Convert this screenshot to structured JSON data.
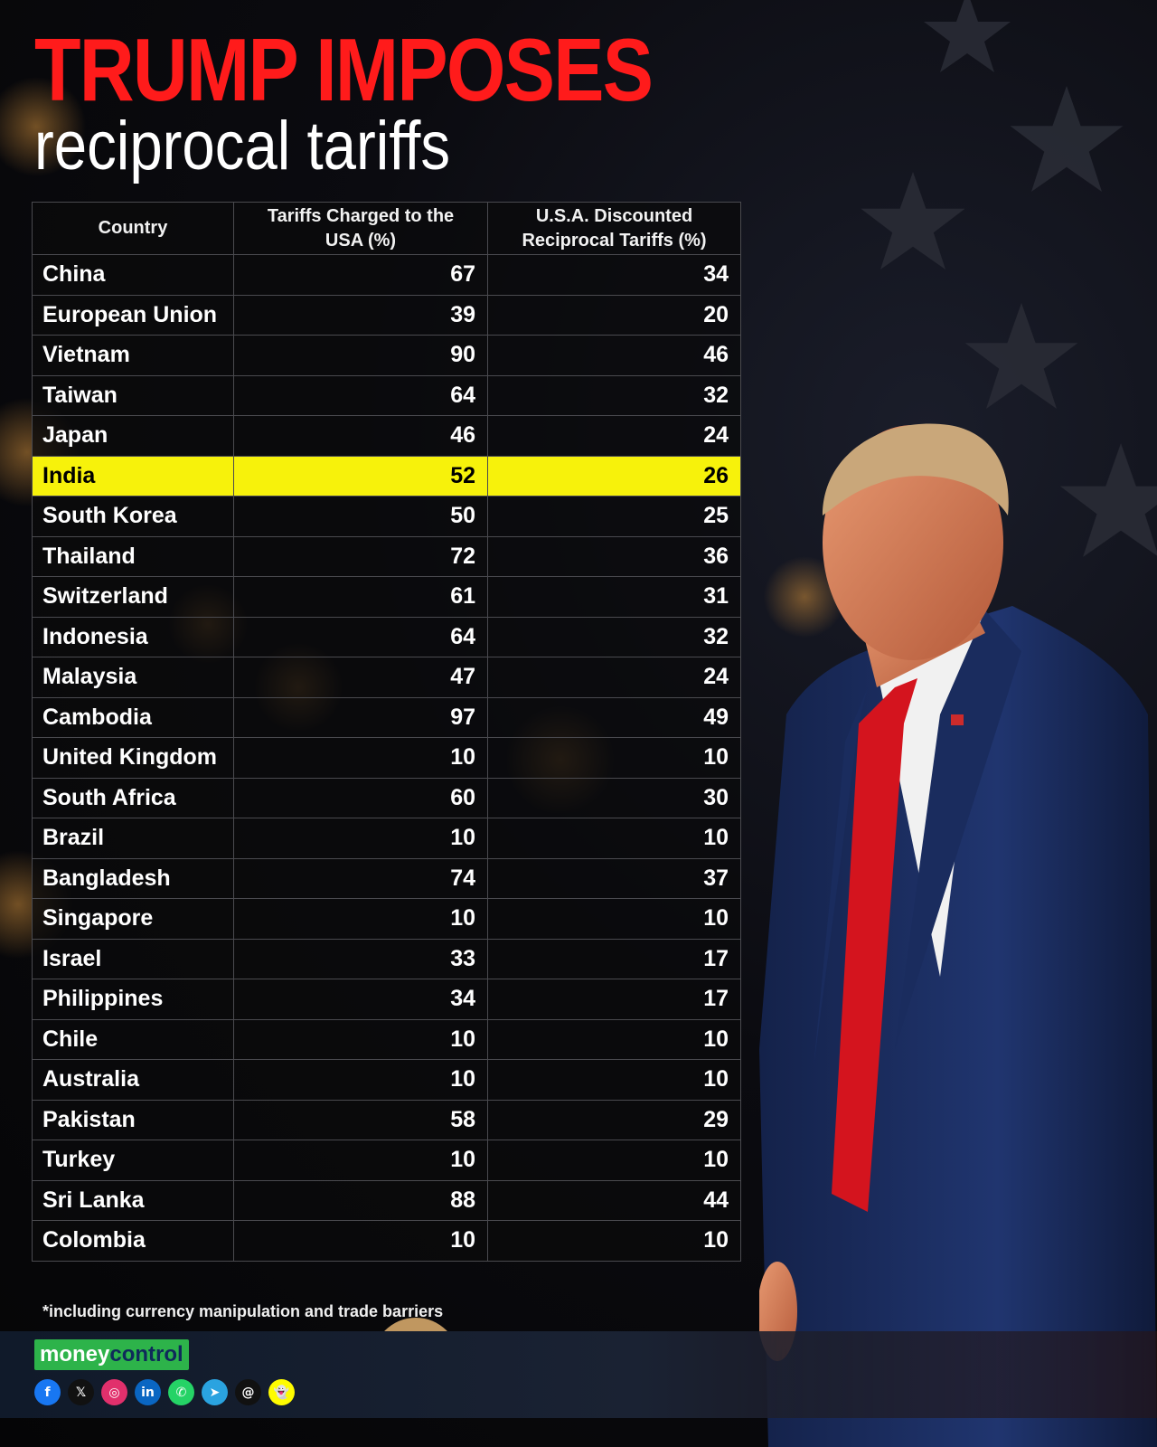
{
  "title": {
    "line1": "TRUMP IMPOSES",
    "line2": "reciprocal tariffs"
  },
  "table": {
    "headers": {
      "country": "Country",
      "charged": "Tariffs Charged to the USA (%)",
      "discounted": "U.S.A. Discounted Reciprocal Tariffs (%)"
    },
    "highlight_color": "#f7f20b",
    "rows": [
      {
        "country": "China",
        "charged": "67",
        "discounted": "34"
      },
      {
        "country": "European Union",
        "charged": "39",
        "discounted": "20"
      },
      {
        "country": "Vietnam",
        "charged": "90",
        "discounted": "46"
      },
      {
        "country": "Taiwan",
        "charged": "64",
        "discounted": "32"
      },
      {
        "country": "Japan",
        "charged": "46",
        "discounted": "24"
      },
      {
        "country": "India",
        "charged": "52",
        "discounted": "26",
        "highlighted": true
      },
      {
        "country": "South Korea",
        "charged": "50",
        "discounted": "25"
      },
      {
        "country": "Thailand",
        "charged": "72",
        "discounted": "36"
      },
      {
        "country": "Switzerland",
        "charged": "61",
        "discounted": "31"
      },
      {
        "country": "Indonesia",
        "charged": "64",
        "discounted": "32"
      },
      {
        "country": "Malaysia",
        "charged": "47",
        "discounted": "24"
      },
      {
        "country": "Cambodia",
        "charged": "97",
        "discounted": "49"
      },
      {
        "country": "United Kingdom",
        "charged": "10",
        "discounted": "10"
      },
      {
        "country": "South Africa",
        "charged": "60",
        "discounted": "30"
      },
      {
        "country": "Brazil",
        "charged": "10",
        "discounted": "10"
      },
      {
        "country": "Bangladesh",
        "charged": "74",
        "discounted": "37"
      },
      {
        "country": "Singapore",
        "charged": "10",
        "discounted": "10"
      },
      {
        "country": "Israel",
        "charged": "33",
        "discounted": "17"
      },
      {
        "country": "Philippines",
        "charged": "34",
        "discounted": "17"
      },
      {
        "country": "Chile",
        "charged": "10",
        "discounted": "10"
      },
      {
        "country": "Australia",
        "charged": "10",
        "discounted": "10"
      },
      {
        "country": "Pakistan",
        "charged": "58",
        "discounted": "29"
      },
      {
        "country": "Turkey",
        "charged": "10",
        "discounted": "10"
      },
      {
        "country": "Sri Lanka",
        "charged": "88",
        "discounted": "44"
      },
      {
        "country": "Colombia",
        "charged": "10",
        "discounted": "10"
      }
    ]
  },
  "footnote": "*including currency manipulation and trade barriers",
  "brand": {
    "part1": "money",
    "part2": "control",
    "color": "#2db34a"
  },
  "socials": [
    {
      "icon": "facebook-icon",
      "glyph": "f",
      "color": "#1877f2"
    },
    {
      "icon": "x-icon",
      "glyph": "𝕏",
      "color": "#111111"
    },
    {
      "icon": "instagram-icon",
      "glyph": "◎",
      "color": "#e1306c"
    },
    {
      "icon": "linkedin-icon",
      "glyph": "in",
      "color": "#0a66c2"
    },
    {
      "icon": "whatsapp-icon",
      "glyph": "✆",
      "color": "#25d366"
    },
    {
      "icon": "telegram-icon",
      "glyph": "➤",
      "color": "#2aa3e0"
    },
    {
      "icon": "threads-icon",
      "glyph": "@",
      "color": "#111111"
    },
    {
      "icon": "snapchat-icon",
      "glyph": "👻",
      "color": "#fffc00"
    }
  ],
  "colors": {
    "title_red": "#ff1b1b",
    "background": "#070708",
    "suit": "#1d2f63",
    "tie": "#d4141e"
  }
}
